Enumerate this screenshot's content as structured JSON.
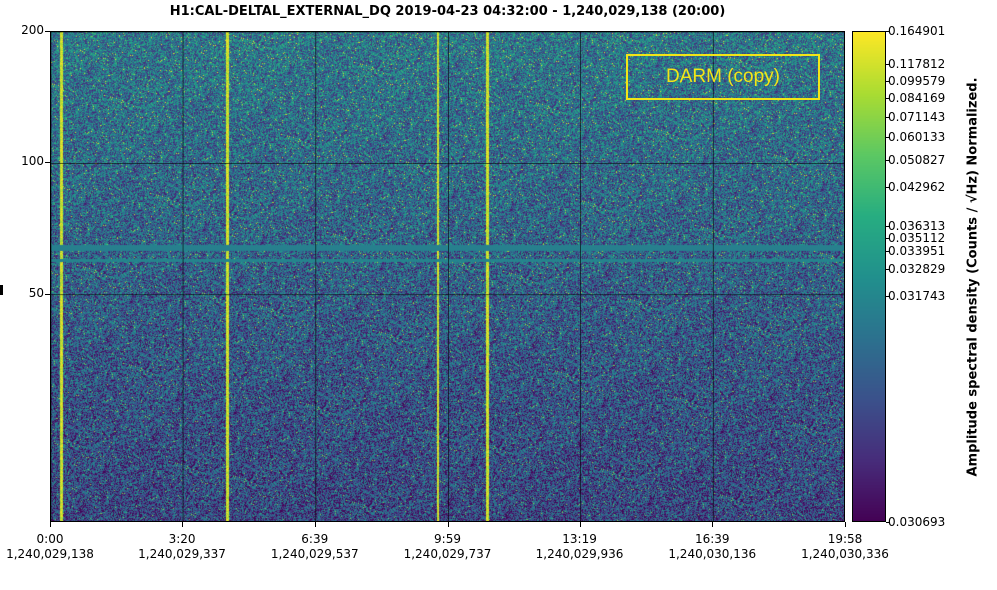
{
  "chart_data": {
    "type": "heatmap",
    "title": "H1:CAL-DELTAL_EXTERNAL_DQ 2019-04-23 04:32:00 - 1,240,029,138 (20:00)",
    "annotation": "DARM (copy)",
    "y_scale": "log",
    "ylim": [
      15,
      200
    ],
    "yticks": [
      {
        "value": 200,
        "label": "200"
      },
      {
        "value": 100,
        "label": "100"
      },
      {
        "value": 50,
        "label": "50"
      }
    ],
    "xlim": [
      0,
      1198
    ],
    "xticks": [
      {
        "value": 0,
        "label": "0:00",
        "sublabel": "1,240,029,138"
      },
      {
        "value": 199,
        "label": "3:20",
        "sublabel": "1,240,029,337"
      },
      {
        "value": 399,
        "label": "6:39",
        "sublabel": "1,240,029,537"
      },
      {
        "value": 599,
        "label": "9:59",
        "sublabel": "1,240,029,737"
      },
      {
        "value": 798,
        "label": "13:19",
        "sublabel": "1,240,029,936"
      },
      {
        "value": 998,
        "label": "16:39",
        "sublabel": "1,240,030,136"
      },
      {
        "value": 1198,
        "label": "19:58",
        "sublabel": "1,240,030,336"
      }
    ],
    "colorbar": {
      "label": "Amplitude spectral density (Counts / √Hz) Normalized.",
      "colormap": "viridis",
      "ticks": [
        "0.164901",
        "0.117812",
        "0.099579",
        "0.084169",
        "0.071143",
        "0.060133",
        "0.050827",
        "0.042962",
        "0.036313",
        "0.035112",
        "0.033951",
        "0.032829",
        "0.031743",
        "0.030693"
      ]
    },
    "features": {
      "horizontal_lines_hz": [
        64,
        60
      ],
      "vertical_lines_s": [
        15,
        265,
        582,
        657
      ]
    },
    "grid": true
  },
  "colors": {
    "annotation": "#f2e518",
    "low": "#440154",
    "high": "#fde725"
  }
}
